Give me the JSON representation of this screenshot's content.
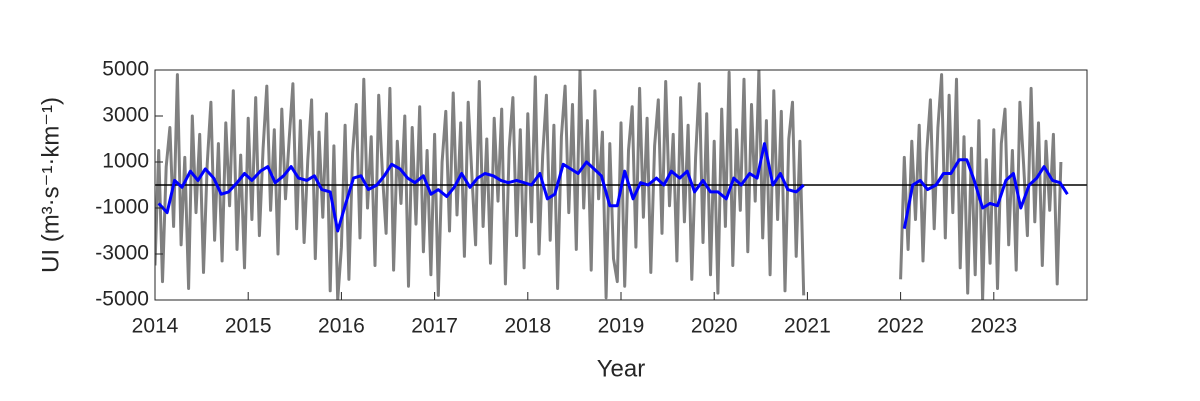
{
  "chart_data": {
    "type": "line",
    "xlabel": "Year",
    "ylabel": "UI (m³·s⁻¹·km⁻¹)",
    "xlim": [
      2014,
      2024
    ],
    "xticks": [
      2014,
      2015,
      2016,
      2017,
      2018,
      2019,
      2020,
      2021,
      2022,
      2023
    ],
    "ylim": [
      -5000,
      5000
    ],
    "yticks": [
      -5000,
      -3000,
      -1000,
      1000,
      3000,
      5000
    ],
    "reference_line": 0,
    "series": [
      {
        "color": "#808080",
        "x": [
          2014,
          2014.04,
          2014.08,
          2014.12,
          2014.16,
          2014.2,
          2014.24,
          2014.28,
          2014.32,
          2014.36,
          2014.4,
          2014.44,
          2014.48,
          2014.52,
          2014.56,
          2014.6,
          2014.64,
          2014.68,
          2014.72,
          2014.76,
          2014.8,
          2014.84,
          2014.88,
          2014.92,
          2014.96,
          2015,
          2015.04,
          2015.08,
          2015.12,
          2015.16,
          2015.2,
          2015.24,
          2015.28,
          2015.32,
          2015.36,
          2015.4,
          2015.44,
          2015.48,
          2015.52,
          2015.56,
          2015.6,
          2015.64,
          2015.68,
          2015.72,
          2015.76,
          2015.8,
          2015.84,
          2015.88,
          2015.92,
          2015.96,
          2016,
          2016.04,
          2016.08,
          2016.12,
          2016.16,
          2016.2,
          2016.24,
          2016.28,
          2016.32,
          2016.36,
          2016.4,
          2016.44,
          2016.48,
          2016.52,
          2016.56,
          2016.6,
          2016.64,
          2016.68,
          2016.72,
          2016.76,
          2016.8,
          2016.84,
          2016.88,
          2016.92,
          2016.96,
          2017,
          2017.04,
          2017.08,
          2017.12,
          2017.16,
          2017.2,
          2017.24,
          2017.28,
          2017.32,
          2017.36,
          2017.4,
          2017.44,
          2017.48,
          2017.52,
          2017.56,
          2017.6,
          2017.64,
          2017.68,
          2017.72,
          2017.76,
          2017.8,
          2017.84,
          2017.88,
          2017.92,
          2017.96,
          2018,
          2018.04,
          2018.08,
          2018.12,
          2018.16,
          2018.2,
          2018.24,
          2018.28,
          2018.32,
          2018.36,
          2018.4,
          2018.44,
          2018.48,
          2018.52,
          2018.56,
          2018.6,
          2018.64,
          2018.68,
          2018.72,
          2018.76,
          2018.8,
          2018.84,
          2018.88,
          2018.92,
          2018.96,
          2019,
          2019.04,
          2019.08,
          2019.12,
          2019.16,
          2019.2,
          2019.24,
          2019.28,
          2019.32,
          2019.36,
          2019.4,
          2019.44,
          2019.48,
          2019.52,
          2019.56,
          2019.6,
          2019.64,
          2019.68,
          2019.72,
          2019.76,
          2019.8,
          2019.84,
          2019.88,
          2019.92,
          2019.96,
          2020,
          2020.04,
          2020.08,
          2020.12,
          2020.16,
          2020.2,
          2020.24,
          2020.28,
          2020.32,
          2020.36,
          2020.4,
          2020.44,
          2020.48,
          2020.52,
          2020.56,
          2020.6,
          2020.64,
          2020.68,
          2020.72,
          2020.76,
          2020.8,
          2020.84,
          2020.88,
          2020.92,
          2020.96,
          2021.5,
          2022,
          2022.04,
          2022.08,
          2022.12,
          2022.16,
          2022.2,
          2022.24,
          2022.28,
          2022.32,
          2022.36,
          2022.4,
          2022.44,
          2022.48,
          2022.52,
          2022.56,
          2022.6,
          2022.64,
          2022.68,
          2022.72,
          2022.76,
          2022.8,
          2022.84,
          2022.88,
          2022.92,
          2022.96,
          2023,
          2023.04,
          2023.08,
          2023.12,
          2023.16,
          2023.2,
          2023.24,
          2023.28,
          2023.32,
          2023.36,
          2023.4,
          2023.44,
          2023.48,
          2023.52,
          2023.56,
          2023.6,
          2023.64,
          2023.68,
          2023.72
        ],
        "values": [
          -3500,
          1500,
          -4200,
          800,
          2500,
          -1800,
          4800,
          -2600,
          1200,
          -4500,
          3000,
          -1200,
          2200,
          -3800,
          900,
          3600,
          -2400,
          1800,
          -3300,
          2700,
          -900,
          4100,
          -2800,
          1300,
          -3600,
          2900,
          -1500,
          3800,
          -2200,
          1600,
          4300,
          -1100,
          2400,
          -3000,
          3300,
          -600,
          2000,
          4400,
          -1900,
          2800,
          -2500,
          1100,
          3700,
          -3200,
          2300,
          -1400,
          3100,
          -4600,
          1700,
          -5000,
          -2700,
          2600,
          -4100,
          1400,
          3500,
          -2300,
          4600,
          -1000,
          2100,
          -3500,
          3900,
          500,
          -2100,
          4200,
          -3700,
          1900,
          -800,
          3000,
          -4400,
          2500,
          -1700,
          3400,
          -2900,
          1500,
          -3900,
          2200,
          -4800,
          1000,
          3200,
          -2000,
          4000,
          -1300,
          2700,
          -3100,
          3600,
          400,
          -2600,
          4500,
          -1800,
          2000,
          -3400,
          2900,
          -700,
          3300,
          -4300,
          1600,
          3800,
          -2200,
          2400,
          -3600,
          3100,
          -1600,
          4700,
          -3000,
          1300,
          3900,
          -2400,
          2600,
          -4500,
          2100,
          4300,
          -1200,
          3500,
          -2800,
          5000,
          -1000,
          2800,
          -3700,
          4100,
          -600,
          2300,
          -4900,
          1800,
          -3200,
          -4200,
          2700,
          -4400,
          1500,
          3400,
          -2700,
          4200,
          -1400,
          2900,
          -3800,
          1700,
          3700,
          -2100,
          4500,
          -900,
          2200,
          -3300,
          3800,
          -1600,
          2600,
          -4100,
          1200,
          4400,
          -2500,
          3100,
          -3900,
          1900,
          -4700,
          3300,
          -1800,
          4900,
          -3500,
          2400,
          -1100,
          4600,
          -2900,
          3500,
          -700,
          5000,
          -2300,
          2800,
          -3900,
          4100,
          -1500,
          3200,
          -4600,
          2000,
          3600,
          -3100,
          1900,
          -4800,
          null,
          -4100,
          1200,
          -2800,
          1900,
          -1500,
          2600,
          -3300,
          1400,
          3700,
          -1900,
          2500,
          4800,
          -2300,
          3900,
          -1200,
          4600,
          -3600,
          2100,
          -4700,
          1600,
          -3900,
          2800,
          -5000,
          1100,
          -3400,
          2400,
          -4500,
          1800,
          3300,
          -2600,
          1500,
          -3700,
          3600,
          900,
          -2200,
          4200,
          -1600,
          2700,
          -3500,
          1900,
          -1100,
          2200,
          -4300,
          1000
        ]
      },
      {
        "color": "#0000ff",
        "x": [
          2014.04,
          2014.13,
          2014.21,
          2014.29,
          2014.38,
          2014.46,
          2014.54,
          2014.63,
          2014.71,
          2014.79,
          2014.88,
          2014.96,
          2015.04,
          2015.13,
          2015.21,
          2015.29,
          2015.38,
          2015.46,
          2015.54,
          2015.63,
          2015.71,
          2015.79,
          2015.88,
          2015.96,
          2016.04,
          2016.13,
          2016.21,
          2016.29,
          2016.38,
          2016.46,
          2016.54,
          2016.63,
          2016.71,
          2016.79,
          2016.88,
          2016.96,
          2017.04,
          2017.13,
          2017.21,
          2017.29,
          2017.38,
          2017.46,
          2017.54,
          2017.63,
          2017.71,
          2017.79,
          2017.88,
          2017.96,
          2018.04,
          2018.13,
          2018.21,
          2018.29,
          2018.38,
          2018.46,
          2018.54,
          2018.63,
          2018.71,
          2018.79,
          2018.88,
          2018.96,
          2019.04,
          2019.13,
          2019.21,
          2019.29,
          2019.38,
          2019.46,
          2019.54,
          2019.63,
          2019.71,
          2019.79,
          2019.88,
          2019.96,
          2020.04,
          2020.13,
          2020.21,
          2020.29,
          2020.38,
          2020.46,
          2020.54,
          2020.63,
          2020.71,
          2020.79,
          2020.88,
          2020.96,
          2021.5,
          2022.04,
          2022.13,
          2022.21,
          2022.29,
          2022.38,
          2022.46,
          2022.54,
          2022.63,
          2022.71,
          2022.79,
          2022.88,
          2022.96,
          2023.04,
          2023.13,
          2023.21,
          2023.29,
          2023.38,
          2023.46,
          2023.54,
          2023.63,
          2023.71,
          2023.79
        ],
        "values": [
          -800,
          -1200,
          200,
          -100,
          600,
          200,
          700,
          300,
          -400,
          -300,
          100,
          500,
          200,
          600,
          800,
          100,
          400,
          800,
          300,
          200,
          400,
          -200,
          -300,
          -2000,
          -900,
          300,
          400,
          -200,
          0,
          400,
          900,
          700,
          300,
          100,
          400,
          -400,
          -200,
          -500,
          -100,
          500,
          -100,
          300,
          500,
          400,
          200,
          100,
          200,
          100,
          0,
          500,
          -600,
          -400,
          900,
          700,
          500,
          1000,
          700,
          400,
          -900,
          -900,
          600,
          -600,
          100,
          0,
          300,
          0,
          600,
          300,
          600,
          -300,
          200,
          -300,
          -300,
          -600,
          300,
          0,
          500,
          300,
          1800,
          0,
          500,
          -200,
          -300,
          0,
          null,
          -1900,
          0,
          200,
          -200,
          0,
          500,
          500,
          1100,
          1100,
          200,
          -1000,
          -800,
          -900,
          200,
          500,
          -1000,
          0,
          300,
          800,
          200,
          100,
          -400
        ]
      }
    ]
  }
}
